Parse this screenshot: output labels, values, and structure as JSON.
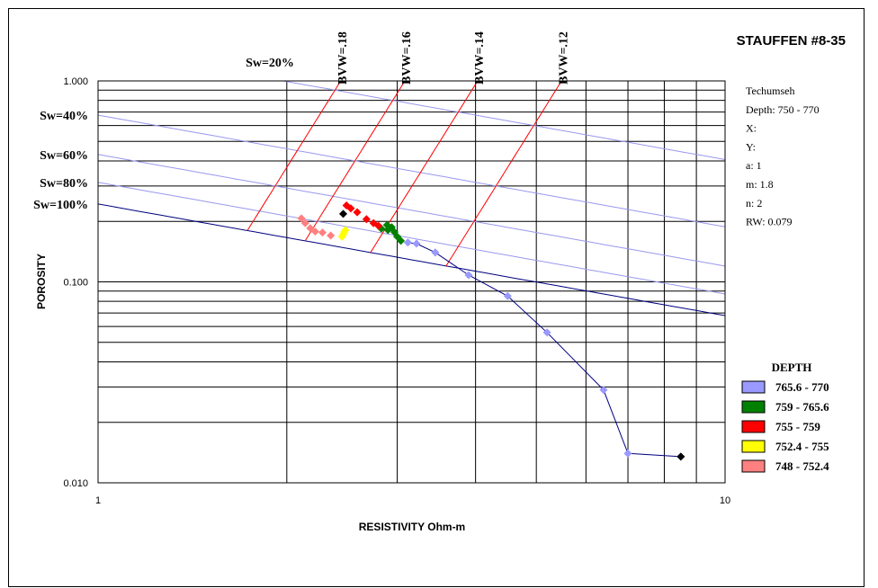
{
  "chart_data": {
    "type": "scatter",
    "title": "STAUFFEN #8-35",
    "xlabel": "RESISTIVITY Ohm-m",
    "ylabel": "POROSITY",
    "x_scale": "log",
    "y_scale": "log",
    "xlim": [
      1,
      10
    ],
    "ylim": [
      0.01,
      1
    ],
    "x_tick_labels": [
      "1",
      "10"
    ],
    "y_tick_labels": [
      "0.010",
      "0.100",
      "1.000"
    ],
    "grid": true,
    "info": [
      "Techumseh",
      "Depth: 750 - 770",
      "X:",
      "Y:",
      "a: 1",
      "m: 1.8",
      "n: 2",
      "RW: 0.079"
    ],
    "archie": {
      "a": 1,
      "m": 1.8,
      "n": 2,
      "rw": 0.079
    },
    "sw_lines": [
      {
        "label": "Sw=20%",
        "sw": 0.2,
        "color": "#9999ee"
      },
      {
        "label": "Sw=40%",
        "sw": 0.4,
        "color": "#9999ee"
      },
      {
        "label": "Sw=60%",
        "sw": 0.6,
        "color": "#9999ee"
      },
      {
        "label": "Sw=80%",
        "sw": 0.8,
        "color": "#9999ee"
      },
      {
        "label": "Sw=100%",
        "sw": 1.0,
        "color": "#000080"
      }
    ],
    "bvw_lines": [
      {
        "label": "BVW=.18",
        "bvw": 0.18,
        "color": "#ff0000"
      },
      {
        "label": "BVW=.16",
        "bvw": 0.16,
        "color": "#ff0000"
      },
      {
        "label": "BVW=.14",
        "bvw": 0.14,
        "color": "#ff0000"
      },
      {
        "label": "BVW=.12",
        "bvw": 0.12,
        "color": "#ff0000"
      }
    ],
    "legend_title": "DEPTH",
    "legend_position": "right",
    "series": [
      {
        "name": "765.6 - 770",
        "color": "#9999ff",
        "connected": true,
        "points": [
          [
            3.12,
            0.157
          ],
          [
            3.22,
            0.155
          ],
          [
            3.45,
            0.14
          ],
          [
            3.9,
            0.108
          ],
          [
            4.5,
            0.085
          ],
          [
            5.2,
            0.056
          ],
          [
            6.4,
            0.029
          ],
          [
            7.0,
            0.014
          ],
          [
            8.5,
            0.0135
          ]
        ]
      },
      {
        "name": "759 - 765.6",
        "color": "#008000",
        "connected": false,
        "points": [
          [
            2.83,
            0.184
          ],
          [
            2.89,
            0.192
          ],
          [
            2.94,
            0.187
          ],
          [
            2.97,
            0.177
          ],
          [
            3.0,
            0.168
          ],
          [
            3.04,
            0.16
          ],
          [
            2.9,
            0.181
          ]
        ]
      },
      {
        "name": "755 - 759",
        "color": "#ff0000",
        "connected": false,
        "points": [
          [
            2.49,
            0.24
          ],
          [
            2.53,
            0.232
          ],
          [
            2.59,
            0.222
          ],
          [
            2.68,
            0.205
          ],
          [
            2.75,
            0.196
          ],
          [
            2.8,
            0.19
          ]
        ]
      },
      {
        "name": "752.4 - 755",
        "color": "#ffff00",
        "connected": false,
        "points": [
          [
            2.45,
            0.168
          ],
          [
            2.46,
            0.172
          ],
          [
            2.47,
            0.177
          ],
          [
            2.48,
            0.181
          ]
        ]
      },
      {
        "name": "748 - 752.4",
        "color": "#ff8080",
        "connected": false,
        "points": [
          [
            2.11,
            0.207
          ],
          [
            2.14,
            0.196
          ],
          [
            2.18,
            0.185
          ],
          [
            2.22,
            0.178
          ],
          [
            2.28,
            0.176
          ],
          [
            2.35,
            0.17
          ]
        ]
      }
    ],
    "extra_points": [
      {
        "color": "#000000",
        "points": [
          [
            2.46,
            0.218
          ],
          [
            8.5,
            0.0135
          ]
        ]
      }
    ]
  }
}
